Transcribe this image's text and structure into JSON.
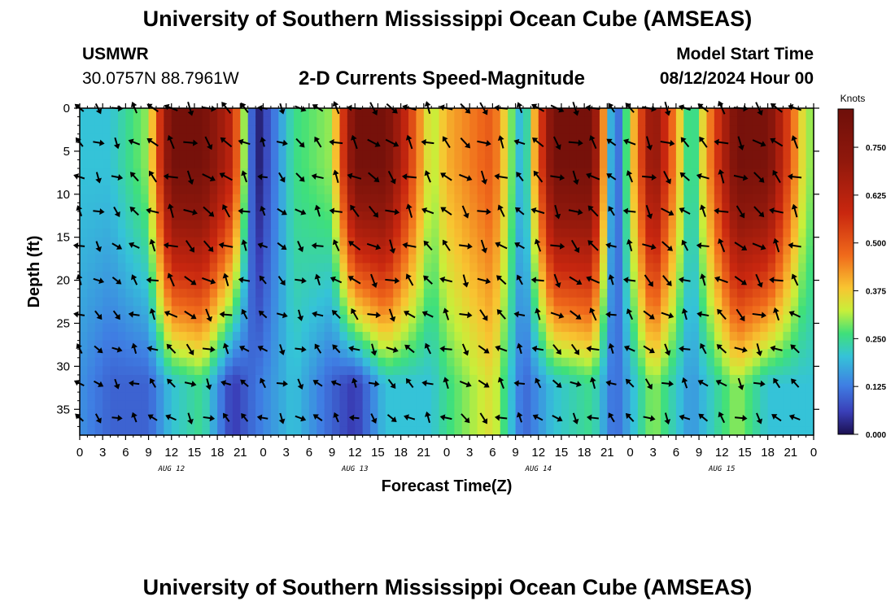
{
  "header": {
    "title": "University of Southern Mississippi Ocean Cube (AMSEAS)",
    "station": "USMWR",
    "coords": "30.0757N  88.7961W",
    "subtitle": "2-D Currents Speed-Magnitude",
    "start_label": "Model Start Time",
    "start_value": "08/12/2024 Hour 00"
  },
  "footer": {
    "title": "University of Southern Mississippi Ocean Cube (AMSEAS)"
  },
  "chart_data": {
    "type": "heatmap",
    "title": "2-D Currents Speed-Magnitude",
    "xlabel": "Forecast Time(Z)",
    "ylabel": "Depth (ft)",
    "xlim": [
      0,
      96
    ],
    "ylim": [
      0,
      38
    ],
    "x_tick_labels": [
      "0",
      "3",
      "6",
      "9",
      "12",
      "15",
      "18",
      "21",
      "0",
      "3",
      "6",
      "9",
      "12",
      "15",
      "18",
      "21",
      "0",
      "3",
      "6",
      "9",
      "12",
      "15",
      "18",
      "21",
      "0",
      "3",
      "6",
      "9",
      "12",
      "15",
      "18",
      "21",
      "0"
    ],
    "y_ticks": [
      0,
      5,
      10,
      15,
      20,
      25,
      30,
      35
    ],
    "day_labels": [
      {
        "label": "AUG 12",
        "hour": 12
      },
      {
        "label": "AUG 13",
        "hour": 36
      },
      {
        "label": "AUG 14",
        "hour": 60
      },
      {
        "label": "AUG 15",
        "hour": 84
      }
    ],
    "colorbar": {
      "unit": "Knots",
      "min": 0.0,
      "max": 0.85,
      "ticks": [
        "0.000",
        "0.125",
        "0.250",
        "0.375",
        "0.500",
        "0.625",
        "0.750"
      ]
    },
    "speed_peaks_knots": [
      {
        "hour": 0,
        "surface": 0.2,
        "deep": 0.15
      },
      {
        "hour": 4,
        "surface": 0.2,
        "deep": 0.1
      },
      {
        "hour": 9,
        "surface": 0.3,
        "deep": 0.1
      },
      {
        "hour": 12,
        "surface": 0.82,
        "deep": 0.2
      },
      {
        "hour": 16,
        "surface": 0.82,
        "deep": 0.25
      },
      {
        "hour": 20,
        "surface": 0.6,
        "deep": 0.05
      },
      {
        "hour": 23,
        "surface": 0.0,
        "deep": 0.12
      },
      {
        "hour": 28,
        "surface": 0.25,
        "deep": 0.2
      },
      {
        "hour": 33,
        "surface": 0.3,
        "deep": 0.1
      },
      {
        "hour": 36,
        "surface": 0.82,
        "deep": 0.05
      },
      {
        "hour": 40,
        "surface": 0.82,
        "deep": 0.2
      },
      {
        "hour": 46,
        "surface": 0.3,
        "deep": 0.2
      },
      {
        "hour": 48,
        "surface": 0.4,
        "deep": 0.25
      },
      {
        "hour": 54,
        "surface": 0.5,
        "deep": 0.35
      },
      {
        "hour": 58,
        "surface": 0.15,
        "deep": 0.1
      },
      {
        "hour": 62,
        "surface": 0.82,
        "deep": 0.2
      },
      {
        "hour": 67,
        "surface": 0.82,
        "deep": 0.25
      },
      {
        "hour": 70,
        "surface": 0.05,
        "deep": 0.1
      },
      {
        "hour": 75,
        "surface": 0.75,
        "deep": 0.3
      },
      {
        "hour": 80,
        "surface": 0.2,
        "deep": 0.15
      },
      {
        "hour": 86,
        "surface": 0.82,
        "deep": 0.3
      },
      {
        "hour": 90,
        "surface": 0.8,
        "deep": 0.2
      },
      {
        "hour": 95,
        "surface": 0.3,
        "deep": 0.2
      }
    ]
  }
}
